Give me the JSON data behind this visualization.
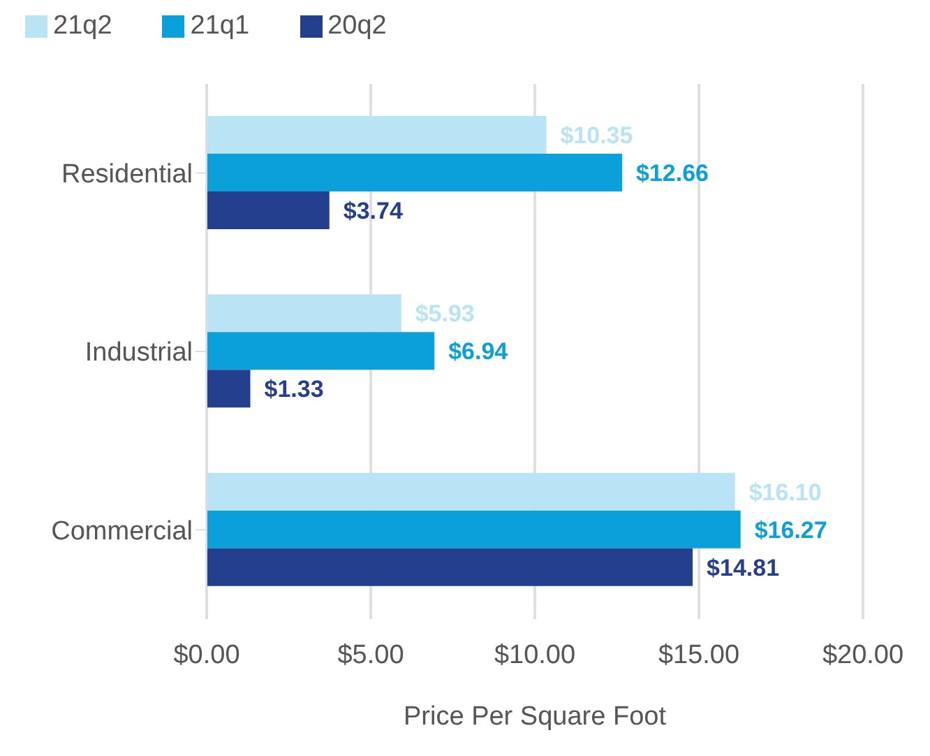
{
  "chart_data": {
    "type": "bar",
    "orientation": "horizontal",
    "xlabel": "Price Per Square Foot",
    "categories": [
      "Residential",
      "Industrial",
      "Commercial"
    ],
    "series": [
      {
        "name": "21q2",
        "color": "#b8e4f5",
        "values": [
          10.35,
          5.93,
          16.1
        ],
        "value_labels": [
          "$10.35",
          "$5.93",
          "$16.10"
        ]
      },
      {
        "name": "21q1",
        "color": "#0ca0da",
        "values": [
          12.66,
          6.94,
          16.27
        ],
        "value_labels": [
          "$12.66",
          "$6.94",
          "$16.27"
        ]
      },
      {
        "name": "20q2",
        "color": "#253f8f",
        "values": [
          3.74,
          1.33,
          14.81
        ],
        "value_labels": [
          "$3.74",
          "$1.33",
          "$14.81"
        ]
      }
    ],
    "xlim": [
      0,
      20
    ],
    "xticks": [
      {
        "value": 0,
        "label": "$0.00"
      },
      {
        "value": 5,
        "label": "$5.00"
      },
      {
        "value": 10,
        "label": "$10.00"
      },
      {
        "value": 15,
        "label": "$15.00"
      },
      {
        "value": 20,
        "label": "$20.00"
      }
    ],
    "grid": "x",
    "legend": "top left"
  }
}
